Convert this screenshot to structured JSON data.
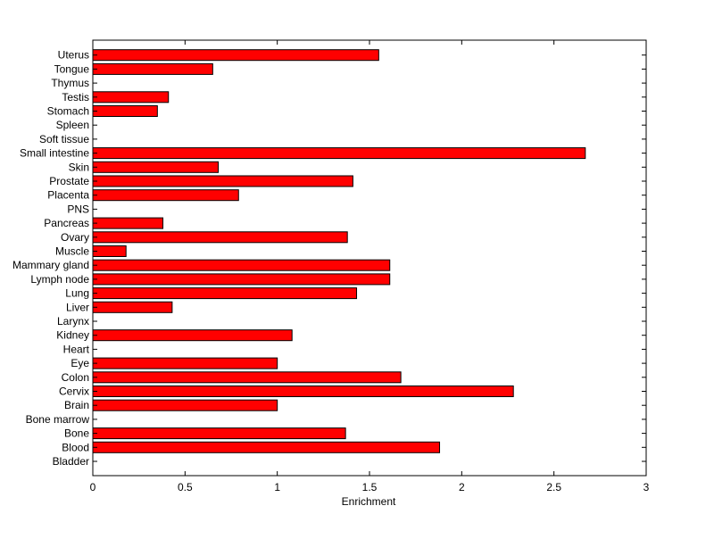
{
  "chart_data": {
    "type": "bar",
    "orientation": "horizontal",
    "title": "",
    "xlabel": "Enrichment",
    "ylabel": "",
    "xlim": [
      0,
      3
    ],
    "xticks": [
      0,
      0.5,
      1,
      1.5,
      2,
      2.5,
      3
    ],
    "xtick_labels": [
      "0",
      "0.5",
      "1",
      "1.5",
      "2",
      "2.5",
      "3"
    ],
    "grid": false,
    "legend": "none",
    "bar_color": "#ff0000",
    "edge_color": "#000000",
    "categories": [
      "Bladder",
      "Blood",
      "Bone",
      "Bone marrow",
      "Brain",
      "Cervix",
      "Colon",
      "Eye",
      "Heart",
      "Kidney",
      "Larynx",
      "Liver",
      "Lung",
      "Lymph node",
      "Mammary gland",
      "Muscle",
      "Ovary",
      "Pancreas",
      "PNS",
      "Placenta",
      "Prostate",
      "Skin",
      "Small intestine",
      "Soft tissue",
      "Spleen",
      "Stomach",
      "Testis",
      "Thymus",
      "Tongue",
      "Uterus"
    ],
    "values": [
      0,
      1.88,
      1.37,
      0,
      1.0,
      2.28,
      1.67,
      1.0,
      0,
      1.08,
      0,
      0.43,
      1.43,
      1.61,
      1.61,
      0.18,
      1.38,
      0.38,
      0,
      0.79,
      1.41,
      0.68,
      2.67,
      0,
      0,
      0.35,
      0.41,
      0,
      0.65,
      1.55
    ]
  }
}
